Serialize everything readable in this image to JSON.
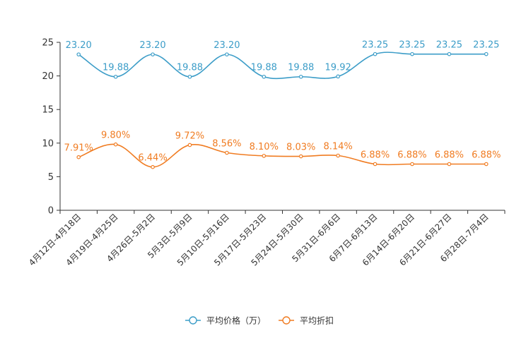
{
  "chart_data": {
    "type": "line",
    "categories": [
      "4月12日-4月18日",
      "4月19日-4月25日",
      "4月26日-5月2日",
      "5月3日-5月9日",
      "5月10日-5月16日",
      "5月17日-5月23日",
      "5月24日-5月30日",
      "5月31日-6月6日",
      "6月7日-6月13日",
      "6月14日-6月20日",
      "6月21日-6月27日",
      "6月28日-7月4日"
    ],
    "ylim": [
      0,
      25
    ],
    "yticks": [
      0,
      5,
      10,
      15,
      20,
      25
    ],
    "series": [
      {
        "name": "平均价格（万）",
        "color": "#3c9dc8",
        "values": [
          23.2,
          19.88,
          23.2,
          19.88,
          23.2,
          19.88,
          19.88,
          19.92,
          23.25,
          23.25,
          23.25,
          23.25
        ],
        "labels": [
          "23.20",
          "19.88",
          "23.20",
          "19.88",
          "23.20",
          "19.88",
          "19.88",
          "19.92",
          "23.25",
          "23.25",
          "23.25",
          "23.25"
        ]
      },
      {
        "name": "平均折扣",
        "color": "#f07c22",
        "values": [
          7.91,
          9.8,
          6.44,
          9.72,
          8.56,
          8.1,
          8.03,
          8.14,
          6.88,
          6.88,
          6.88,
          6.88
        ],
        "labels": [
          "7.91%",
          "9.80%",
          "6.44%",
          "9.72%",
          "8.56%",
          "8.10%",
          "8.03%",
          "8.14%",
          "6.88%",
          "6.88%",
          "6.88%",
          "6.88%"
        ]
      }
    ],
    "legend_position": "bottom-center"
  }
}
